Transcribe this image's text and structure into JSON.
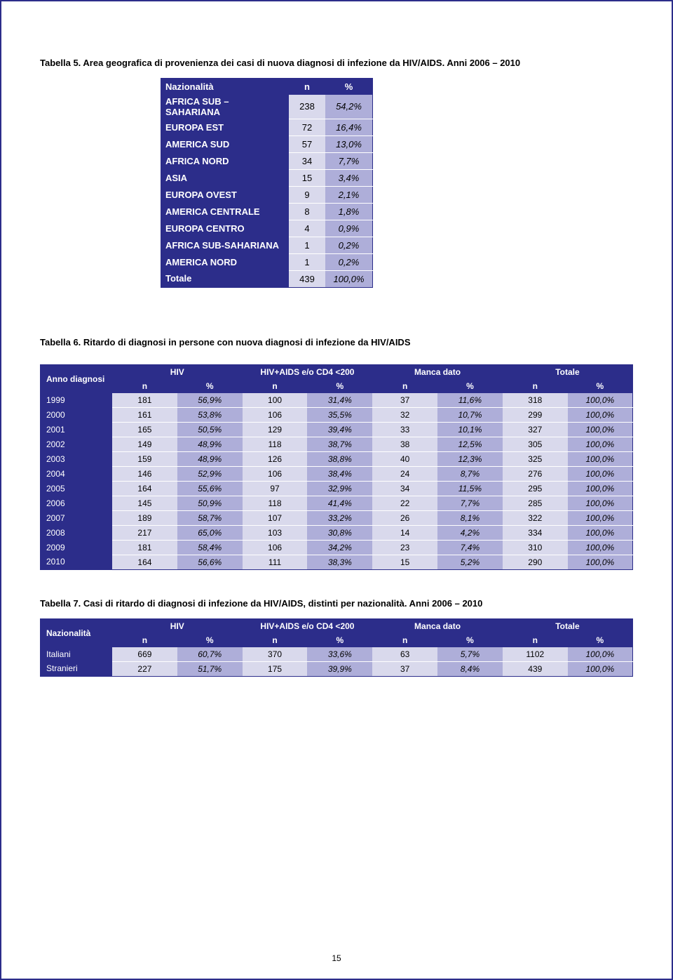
{
  "pageNumber": "15",
  "table5": {
    "caption": "Tabella 5. Area geografica di provenienza dei casi di nuova diagnosi di infezione da HIV/AIDS. Anni 2006 – 2010",
    "headers": {
      "label": "Nazionalità",
      "n": "n",
      "pct": "%"
    },
    "rows": [
      {
        "label": "AFRICA SUB – SAHARIANA",
        "n": "238",
        "pct": "54,2%"
      },
      {
        "label": "EUROPA EST",
        "n": "72",
        "pct": "16,4%"
      },
      {
        "label": "AMERICA SUD",
        "n": "57",
        "pct": "13,0%"
      },
      {
        "label": "AFRICA NORD",
        "n": "34",
        "pct": "7,7%"
      },
      {
        "label": "ASIA",
        "n": "15",
        "pct": "3,4%"
      },
      {
        "label": "EUROPA OVEST",
        "n": "9",
        "pct": "2,1%"
      },
      {
        "label": "AMERICA CENTRALE",
        "n": "8",
        "pct": "1,8%"
      },
      {
        "label": "EUROPA CENTRO",
        "n": "4",
        "pct": "0,9%"
      },
      {
        "label": "AFRICA SUB-SAHARIANA",
        "n": "1",
        "pct": "0,2%"
      },
      {
        "label": "AMERICA NORD",
        "n": "1",
        "pct": "0,2%"
      },
      {
        "label": "Totale",
        "n": "439",
        "pct": "100,0%"
      }
    ]
  },
  "table6": {
    "caption": "Tabella 6. Ritardo di diagnosi in persone con nuova diagnosi di infezione da HIV/AIDS",
    "cornerLabel": "Anno diagnosi",
    "groups": [
      "HIV",
      "HIV+AIDS e/o CD4 <200",
      "Manca dato",
      "Totale"
    ],
    "subheaders": [
      "n",
      "%",
      "n",
      "%",
      "n",
      "%",
      "n",
      "%"
    ],
    "rows": [
      {
        "y": "1999",
        "c": [
          "181",
          "56,9%",
          "100",
          "31,4%",
          "37",
          "11,6%",
          "318",
          "100,0%"
        ]
      },
      {
        "y": "2000",
        "c": [
          "161",
          "53,8%",
          "106",
          "35,5%",
          "32",
          "10,7%",
          "299",
          "100,0%"
        ]
      },
      {
        "y": "2001",
        "c": [
          "165",
          "50,5%",
          "129",
          "39,4%",
          "33",
          "10,1%",
          "327",
          "100,0%"
        ]
      },
      {
        "y": "2002",
        "c": [
          "149",
          "48,9%",
          "118",
          "38,7%",
          "38",
          "12,5%",
          "305",
          "100,0%"
        ]
      },
      {
        "y": "2003",
        "c": [
          "159",
          "48,9%",
          "126",
          "38,8%",
          "40",
          "12,3%",
          "325",
          "100,0%"
        ]
      },
      {
        "y": "2004",
        "c": [
          "146",
          "52,9%",
          "106",
          "38,4%",
          "24",
          "8,7%",
          "276",
          "100,0%"
        ]
      },
      {
        "y": "2005",
        "c": [
          "164",
          "55,6%",
          "97",
          "32,9%",
          "34",
          "11,5%",
          "295",
          "100,0%"
        ]
      },
      {
        "y": "2006",
        "c": [
          "145",
          "50,9%",
          "118",
          "41,4%",
          "22",
          "7,7%",
          "285",
          "100,0%"
        ]
      },
      {
        "y": "2007",
        "c": [
          "189",
          "58,7%",
          "107",
          "33,2%",
          "26",
          "8,1%",
          "322",
          "100,0%"
        ]
      },
      {
        "y": "2008",
        "c": [
          "217",
          "65,0%",
          "103",
          "30,8%",
          "14",
          "4,2%",
          "334",
          "100,0%"
        ]
      },
      {
        "y": "2009",
        "c": [
          "181",
          "58,4%",
          "106",
          "34,2%",
          "23",
          "7,4%",
          "310",
          "100,0%"
        ]
      },
      {
        "y": "2010",
        "c": [
          "164",
          "56,6%",
          "111",
          "38,3%",
          "15",
          "5,2%",
          "290",
          "100,0%"
        ]
      }
    ]
  },
  "table7": {
    "caption": "Tabella 7. Casi di ritardo di diagnosi di infezione da HIV/AIDS, distinti per nazionalità. Anni 2006 – 2010",
    "cornerLabel": "Nazionalità",
    "groups": [
      "HIV",
      "HIV+AIDS e/o CD4 <200",
      "Manca dato",
      "Totale"
    ],
    "subheaders": [
      "n",
      "%",
      "n",
      "%",
      "n",
      "%",
      "n",
      "%"
    ],
    "rows": [
      {
        "y": "Italiani",
        "c": [
          "669",
          "60,7%",
          "370",
          "33,6%",
          "63",
          "5,7%",
          "1102",
          "100,0%"
        ]
      },
      {
        "y": "Stranieri",
        "c": [
          "227",
          "51,7%",
          "175",
          "39,9%",
          "37",
          "8,4%",
          "439",
          "100,0%"
        ]
      }
    ]
  }
}
